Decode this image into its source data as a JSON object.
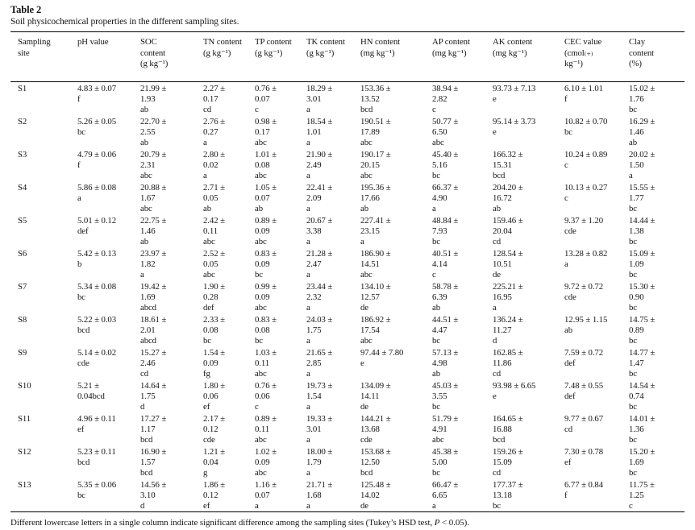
{
  "title": "Table 2",
  "caption": "Soil physicochemical properties in the different sampling sites.",
  "footnote": {
    "before_p": "Different lowercase letters in a single column indicate significant difference among the sampling sites (Tukey’s HSD test, ",
    "p": "P",
    "after_p": " < 0.05)."
  },
  "table": {
    "columns": [
      {
        "id": "site",
        "label": "Sampling site",
        "lines": [
          "Sampling",
          "site"
        ]
      },
      {
        "id": "ph",
        "label": "pH value",
        "lines": [
          "pH value"
        ]
      },
      {
        "id": "soc",
        "label": "SOC content (g kg⁻¹)",
        "lines": [
          "SOC",
          "content",
          "(g kg⁻¹)"
        ]
      },
      {
        "id": "tn",
        "label": "TN content (g kg⁻¹)",
        "lines": [
          "TN content",
          "(g kg⁻¹)"
        ]
      },
      {
        "id": "tp",
        "label": "TP content (g kg⁻¹)",
        "lines": [
          "TP content",
          "(g kg⁻¹)"
        ]
      },
      {
        "id": "tk",
        "label": "TK content (g kg⁻¹)",
        "lines": [
          "TK content",
          "(g kg⁻¹)"
        ]
      },
      {
        "id": "hn",
        "label": "HN content (mg kg⁻¹)",
        "lines": [
          "HN content",
          "(mg kg⁻¹)"
        ]
      },
      {
        "id": "ap",
        "label": "AP content (mg kg⁻¹)",
        "lines": [
          "AP content",
          "(mg kg⁻¹)"
        ]
      },
      {
        "id": "ak",
        "label": "AK content (mg kg⁻¹)",
        "lines": [
          "AK content",
          "(mg kg⁻¹)"
        ]
      },
      {
        "id": "cec",
        "label": "CEC value (cmol(+) kg⁻¹)",
        "lines": [
          "CEC value",
          "(cmol₍₊₎",
          "kg⁻¹)"
        ]
      },
      {
        "id": "clay",
        "label": "Clay content (%)",
        "lines": [
          "Clay",
          "content",
          "(%)"
        ]
      }
    ],
    "rows": [
      {
        "site": "S1",
        "cells": [
          [
            "S1"
          ],
          [
            "4.83 ± 0.07",
            "f"
          ],
          [
            "21.99 ±",
            "1.93",
            "ab"
          ],
          [
            "2.27 ±",
            "0.17",
            "cd"
          ],
          [
            "0.76 ±",
            "0.07",
            "c"
          ],
          [
            "18.29 ±",
            "3.01",
            "a"
          ],
          [
            "153.36 ±",
            "13.52",
            "bcd"
          ],
          [
            "38.94 ±",
            "2.82",
            "c"
          ],
          [
            "93.73 ± 7.13",
            "e"
          ],
          [
            "6.10 ± 1.01",
            "f"
          ],
          [
            "15.02 ±",
            "1.76",
            "bc"
          ]
        ]
      },
      {
        "site": "S2",
        "cells": [
          [
            "S2"
          ],
          [
            "5.26 ± 0.05",
            "bc"
          ],
          [
            "22.70 ±",
            "2.55",
            "ab"
          ],
          [
            "2.76 ±",
            "0.27",
            "a"
          ],
          [
            "0.98 ±",
            "0.17",
            "abc"
          ],
          [
            "18.54 ±",
            "1.01",
            "a"
          ],
          [
            "190.51 ±",
            "17.89",
            "abc"
          ],
          [
            "50.77 ±",
            "6.50",
            "abc"
          ],
          [
            "95.14 ± 3.73",
            "e"
          ],
          [
            "10.82 ± 0.70",
            "bc"
          ],
          [
            "16.29 ±",
            "1.46",
            "ab"
          ]
        ]
      },
      {
        "site": "S3",
        "cells": [
          [
            "S3"
          ],
          [
            "4.79 ± 0.06",
            "f"
          ],
          [
            "20.79 ±",
            "2.31",
            "abc"
          ],
          [
            "2.80 ±",
            "0.02",
            "a"
          ],
          [
            "1.01 ±",
            "0.08",
            "abc"
          ],
          [
            "21.90 ±",
            "2.49",
            "a"
          ],
          [
            "190.17 ±",
            "20.15",
            "abc"
          ],
          [
            "45.40 ±",
            "5.16",
            "bc"
          ],
          [
            "166.32 ±",
            "15.31",
            "bcd"
          ],
          [
            "10.24 ± 0.89",
            "c"
          ],
          [
            "20.02 ±",
            "1.50",
            "a"
          ]
        ]
      },
      {
        "site": "S4",
        "cells": [
          [
            "S4"
          ],
          [
            "5.86 ± 0.08",
            "a"
          ],
          [
            "20.88 ±",
            "1.67",
            "abc"
          ],
          [
            "2.71 ±",
            "0.05",
            "ab"
          ],
          [
            "1.05 ±",
            "0.07",
            "ab"
          ],
          [
            "22.41 ±",
            "2.09",
            "a"
          ],
          [
            "195.36 ±",
            "17.66",
            "ab"
          ],
          [
            "66.37 ±",
            "4.90",
            "a"
          ],
          [
            "204.20 ±",
            "16.72",
            "ab"
          ],
          [
            "10.13 ± 0.27",
            "c"
          ],
          [
            "15.55 ±",
            "1.77",
            "bc"
          ]
        ]
      },
      {
        "site": "S5",
        "cells": [
          [
            "S5"
          ],
          [
            "5.01 ± 0.12",
            "def"
          ],
          [
            "22.75 ±",
            "1.46",
            "ab"
          ],
          [
            "2.42 ±",
            "0.11",
            "abc"
          ],
          [
            "0.89 ±",
            "0.09",
            "abc"
          ],
          [
            "20.67 ±",
            "3.38",
            "a"
          ],
          [
            "227.41 ±",
            "23.15",
            "a"
          ],
          [
            "48.84 ±",
            "7.93",
            "bc"
          ],
          [
            "159.46 ±",
            "20.04",
            "cd"
          ],
          [
            "9.37 ± 1.20",
            "cde"
          ],
          [
            "14.44 ±",
            "1.38",
            "bc"
          ]
        ]
      },
      {
        "site": "S6",
        "cells": [
          [
            "S6"
          ],
          [
            "5.42 ± 0.13",
            "b"
          ],
          [
            "23.97 ±",
            "1.82",
            "a"
          ],
          [
            "2.52 ±",
            "0.05",
            "abc"
          ],
          [
            "0.83 ±",
            "0.09",
            "bc"
          ],
          [
            "21.28 ±",
            "2.47",
            "a"
          ],
          [
            "186.90 ±",
            "14.51",
            "abc"
          ],
          [
            "40.51 ±",
            "4.14",
            "c"
          ],
          [
            "128.54 ±",
            "10.51",
            "de"
          ],
          [
            "13.28 ± 0.82",
            "a"
          ],
          [
            "15.09 ±",
            "1.09",
            "bc"
          ]
        ]
      },
      {
        "site": "S7",
        "cells": [
          [
            "S7"
          ],
          [
            "5.34 ± 0.08",
            "bc"
          ],
          [
            "19.42 ±",
            "1.69",
            "abcd"
          ],
          [
            "1.90 ±",
            "0.28",
            "def"
          ],
          [
            "0.99 ±",
            "0.09",
            "abc"
          ],
          [
            "23.44 ±",
            "2.32",
            "a"
          ],
          [
            "134.10 ±",
            "12.57",
            "de"
          ],
          [
            "58.78 ±",
            "6.39",
            "ab"
          ],
          [
            "225.21 ±",
            "16.95",
            "a"
          ],
          [
            "9.72 ± 0.72",
            "cde"
          ],
          [
            "15.30 ±",
            "0.90",
            "bc"
          ]
        ]
      },
      {
        "site": "S8",
        "cells": [
          [
            "S8"
          ],
          [
            "5.22 ± 0.03",
            "bcd"
          ],
          [
            "18.61 ±",
            "2.01",
            "abcd"
          ],
          [
            "2.33 ±",
            "0.08",
            "bc"
          ],
          [
            "0.83 ±",
            "0.08",
            "bc"
          ],
          [
            "24.03 ±",
            "1.75",
            "a"
          ],
          [
            "186.92 ±",
            "17.54",
            "abc"
          ],
          [
            "44.51 ±",
            "4.47",
            "bc"
          ],
          [
            "136.24 ±",
            "11.27",
            "d"
          ],
          [
            "12.95 ± 1.15",
            "ab"
          ],
          [
            "14.75 ±",
            "0.89",
            "bc"
          ]
        ]
      },
      {
        "site": "S9",
        "cells": [
          [
            "S9"
          ],
          [
            "5.14 ± 0.02",
            "cde"
          ],
          [
            "15.27 ±",
            "2.46",
            "cd"
          ],
          [
            "1.54 ±",
            "0.09",
            "fg"
          ],
          [
            "1.03 ±",
            "0.11",
            "abc"
          ],
          [
            "21.65 ±",
            "2.85",
            "a"
          ],
          [
            "97.44 ± 7.80",
            "e"
          ],
          [
            "57.13 ±",
            "4.98",
            "ab"
          ],
          [
            "162.85 ±",
            "11.86",
            "cd"
          ],
          [
            "7.59 ± 0.72",
            "def"
          ],
          [
            "14.77 ±",
            "1.47",
            "bc"
          ]
        ]
      },
      {
        "site": "S10",
        "cells": [
          [
            "S10"
          ],
          [
            "5.21 ±",
            "0.04bcd"
          ],
          [
            "14.64 ±",
            "1.75",
            "d"
          ],
          [
            "1.80 ±",
            "0.06",
            "ef"
          ],
          [
            "0.76 ±",
            "0.06",
            "c"
          ],
          [
            "19.73 ±",
            "1.54",
            "a"
          ],
          [
            "134.09 ±",
            "14.11",
            "de"
          ],
          [
            "45.03 ±",
            "3.55",
            "bc"
          ],
          [
            "93.98 ± 6.65",
            "e"
          ],
          [
            "7.48 ± 0.55",
            "def"
          ],
          [
            "14.54 ±",
            "0.74",
            "bc"
          ]
        ]
      },
      {
        "site": "S11",
        "cells": [
          [
            "S11"
          ],
          [
            "4.96 ± 0.11",
            "ef"
          ],
          [
            "17.27 ±",
            "1.17",
            "bcd"
          ],
          [
            "2.17 ±",
            "0.12",
            "cde"
          ],
          [
            "0.89 ±",
            "0.11",
            "abc"
          ],
          [
            "19.33 ±",
            "3.01",
            "a"
          ],
          [
            "144.21 ±",
            "13.68",
            "cde"
          ],
          [
            "51.79 ±",
            "4.91",
            "abc"
          ],
          [
            "164.65 ±",
            "16.88",
            "bcd"
          ],
          [
            "9.77 ± 0.67",
            "cd"
          ],
          [
            "14.01 ±",
            "1.36",
            "bc"
          ]
        ]
      },
      {
        "site": "S12",
        "cells": [
          [
            "S12"
          ],
          [
            "5.23 ± 0.11",
            "bcd"
          ],
          [
            "16.90 ±",
            "1.57",
            "bcd"
          ],
          [
            "1.21 ±",
            "0.04",
            "g"
          ],
          [
            "1.02 ±",
            "0.09",
            "abc"
          ],
          [
            "18.00 ±",
            "1.79",
            "a"
          ],
          [
            "153.68 ±",
            "12.50",
            "bcd"
          ],
          [
            "45.38 ±",
            "5.00",
            "bc"
          ],
          [
            "159.26 ±",
            "15.09",
            "cd"
          ],
          [
            "7.30 ± 0.78",
            "ef"
          ],
          [
            "15.20 ±",
            "1.69",
            "bc"
          ]
        ]
      },
      {
        "site": "S13",
        "cells": [
          [
            "S13"
          ],
          [
            "5.35 ± 0.06",
            "bc"
          ],
          [
            "14.56 ±",
            "3.10",
            "d"
          ],
          [
            "1.86 ±",
            "0.12",
            "ef"
          ],
          [
            "1.16 ±",
            "0.07",
            "a"
          ],
          [
            "21.71 ±",
            "1.68",
            "a"
          ],
          [
            "125.48 ±",
            "14.02",
            "de"
          ],
          [
            "66.47 ±",
            "6.65",
            "a"
          ],
          [
            "177.37 ±",
            "13.18",
            "bc"
          ],
          [
            "6.77 ± 0.84",
            "f"
          ],
          [
            "11.75 ±",
            "1.25",
            "c"
          ]
        ]
      }
    ]
  }
}
